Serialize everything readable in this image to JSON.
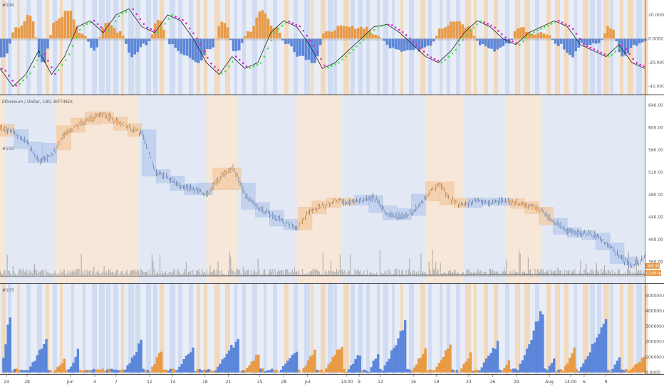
{
  "colors": {
    "bg_blue": "#dfe6f3",
    "bg_orange": "#f8e7d6",
    "stripe_blue": "#c9d6f0",
    "stripe_orange": "#f5d2aa",
    "hist_blue": "#5b86d9",
    "hist_orange": "#e99a45",
    "candle_blue": "#6f98de",
    "candle_orange": "#ec9b50",
    "line_black": "#222222",
    "dot_green": "#3ee63e",
    "dot_magenta": "#e020d0",
    "volume_gray": "#9c9c9c",
    "price_box": "#e99a45"
  },
  "header": {
    "osc_label": "#104",
    "main_title": "Ethereum / Dollar, 180, BITFINEX",
    "main_sub1": "",
    "main_sub2": "#103",
    "vol_label": "#103"
  },
  "price_tags": {
    "last": "368.35",
    "volume": "02:06:44"
  },
  "chart_data": [
    {
      "type": "line",
      "title": "#104",
      "ylim": [
        -45,
        30
      ],
      "y_ticks": [
        "20.0000",
        "0.0000",
        "-20.0000",
        "-40.0000"
      ],
      "y_tick_values": [
        20,
        0,
        -20,
        -40
      ],
      "x": [
        0,
        2,
        4,
        6,
        8,
        10,
        12,
        14,
        16,
        18,
        20,
        22,
        24,
        26,
        28,
        30,
        32,
        34,
        36,
        38,
        40,
        42,
        44,
        46,
        48,
        50,
        52,
        54,
        56,
        58,
        60,
        62,
        64,
        66,
        68,
        70,
        72,
        74,
        76,
        78,
        80,
        82,
        84,
        86,
        88,
        90,
        92,
        94,
        96,
        98,
        100
      ],
      "series": [
        {
          "values": [
            -25,
            -40,
            -30,
            -10,
            -30,
            -15,
            10,
            15,
            5,
            20,
            25,
            10,
            5,
            20,
            15,
            0,
            -20,
            -30,
            -15,
            -25,
            -20,
            5,
            15,
            10,
            -5,
            -25,
            -20,
            -10,
            0,
            10,
            12,
            5,
            -5,
            -15,
            -20,
            -10,
            5,
            15,
            10,
            0,
            -5,
            5,
            10,
            15,
            10,
            -5,
            -10,
            -15,
            -5,
            -20,
            -25
          ]
        }
      ]
    },
    {
      "type": "line",
      "title": "Ethereum / Dollar, 180, BITFINEX",
      "ylim": [
        330,
        650
      ],
      "y_ticks": [
        "640.00",
        "600.00",
        "560.00",
        "520.00",
        "480.00",
        "440.00",
        "400.00",
        "360.00"
      ],
      "y_tick_values": [
        640,
        600,
        560,
        520,
        480,
        440,
        400,
        360
      ],
      "x": [
        0,
        2,
        4,
        6,
        8,
        10,
        12,
        14,
        16,
        18,
        20,
        22,
        24,
        26,
        28,
        30,
        32,
        34,
        36,
        38,
        40,
        42,
        44,
        46,
        48,
        50,
        52,
        54,
        56,
        58,
        60,
        62,
        64,
        66,
        68,
        70,
        72,
        74,
        76,
        78,
        80,
        82,
        84,
        86,
        88,
        90,
        92,
        94,
        96,
        98,
        100
      ],
      "series": [
        {
          "values": [
            600,
            592,
            575,
            540,
            550,
            590,
            605,
            615,
            625,
            610,
            600,
            590,
            520,
            510,
            495,
            490,
            480,
            510,
            530,
            480,
            455,
            445,
            430,
            420,
            450,
            460,
            470,
            465,
            470,
            475,
            445,
            440,
            450,
            475,
            500,
            470,
            460,
            470,
            465,
            470,
            465,
            460,
            450,
            430,
            415,
            410,
            408,
            395,
            370,
            352,
            368
          ]
        }
      ]
    },
    {
      "type": "bar",
      "title": "#103",
      "ylim": [
        0,
        550000
      ],
      "y_ticks": [
        "500000.0000",
        "400000.0000",
        "300000.0000",
        "200000.0000",
        "100000.0000",
        "0.0000"
      ],
      "y_tick_values": [
        500000,
        400000,
        300000,
        200000,
        100000,
        0
      ]
    }
  ],
  "x_axis": {
    "labels": [
      {
        "text": "24",
        "pos": 0.01
      },
      {
        "text": "28",
        "pos": 0.042
      },
      {
        "text": "Jun",
        "pos": 0.109
      },
      {
        "text": "4",
        "pos": 0.147
      },
      {
        "text": "7",
        "pos": 0.18
      },
      {
        "text": "11",
        "pos": 0.232
      },
      {
        "text": "14",
        "pos": 0.268
      },
      {
        "text": "18",
        "pos": 0.318
      },
      {
        "text": "21",
        "pos": 0.354
      },
      {
        "text": "25",
        "pos": 0.403
      },
      {
        "text": "28",
        "pos": 0.44
      },
      {
        "text": "Jul",
        "pos": 0.477
      },
      {
        "text": "14:00",
        "pos": 0.538
      },
      {
        "text": "9",
        "pos": 0.557
      },
      {
        "text": "12",
        "pos": 0.59
      },
      {
        "text": "16",
        "pos": 0.641
      },
      {
        "text": "19",
        "pos": 0.677
      },
      {
        "text": "23",
        "pos": 0.727
      },
      {
        "text": "26",
        "pos": 0.764
      },
      {
        "text": "29",
        "pos": 0.801
      },
      {
        "text": "Aug",
        "pos": 0.852
      },
      {
        "text": "14:00",
        "pos": 0.885
      },
      {
        "text": "6",
        "pos": 0.906
      },
      {
        "text": "9",
        "pos": 0.94
      }
    ]
  }
}
